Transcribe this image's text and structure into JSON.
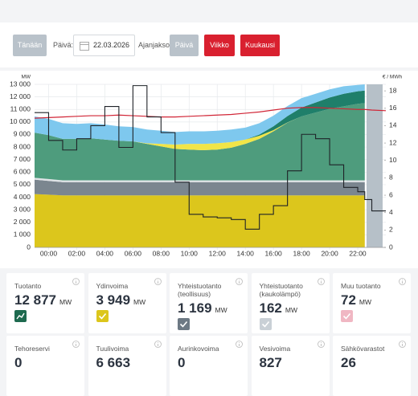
{
  "controls": {
    "today": "Tänään",
    "day_label": "Päivä:",
    "date": "22.03.2026",
    "period_label": "Ajanjakso:",
    "periods": [
      "Päivä",
      "Viikko",
      "Kuukausi"
    ]
  },
  "chart_data": {
    "type": "area",
    "y_label": "MW",
    "y2_label": "€ / MWh",
    "x": [
      -1,
      0,
      1,
      2,
      3,
      4,
      5,
      6,
      7,
      8,
      9,
      10,
      11,
      12,
      13,
      14,
      15,
      16,
      17,
      18,
      19,
      20,
      21,
      22,
      22.5,
      23,
      24
    ],
    "xlim": [
      -1,
      24
    ],
    "xticks": [
      {
        "value": 0,
        "label": "00:00"
      },
      {
        "value": 2,
        "label": "02:00"
      },
      {
        "value": 4,
        "label": "04:00"
      },
      {
        "value": 6,
        "label": "06:00"
      },
      {
        "value": 8,
        "label": "08:00"
      },
      {
        "value": 10,
        "label": "10:00"
      },
      {
        "value": 12,
        "label": "12:00"
      },
      {
        "value": 14,
        "label": "14:00"
      },
      {
        "value": 16,
        "label": "16:00"
      },
      {
        "value": 18,
        "label": "18:00"
      },
      {
        "value": 20,
        "label": "20:00"
      },
      {
        "value": 22,
        "label": "22:00"
      }
    ],
    "ylim": [
      0,
      13000
    ],
    "yticks": [
      0,
      {
        "value": 1000,
        "label": "1 000"
      },
      {
        "value": 2000,
        "label": "2 000"
      },
      {
        "value": 3000,
        "label": "3 000"
      },
      {
        "value": 4000,
        "label": "4 000"
      },
      {
        "value": 5000,
        "label": "5 000"
      },
      {
        "value": 6000,
        "label": "6 000"
      },
      {
        "value": 7000,
        "label": "7 000"
      },
      {
        "value": 8000,
        "label": "8 000"
      },
      {
        "value": 9000,
        "label": "9 000"
      },
      {
        "value": 10000,
        "label": "10 000"
      },
      {
        "value": 11000,
        "label": "11 000"
      },
      {
        "value": 12000,
        "label": "12 000"
      },
      {
        "value": 13000,
        "label": "13 000"
      }
    ],
    "y2lim": [
      0,
      18.75
    ],
    "y2ticks": [
      0,
      2,
      4,
      6,
      8,
      10,
      12,
      14,
      16,
      18
    ],
    "grid": true,
    "series": [
      {
        "kind": "stack",
        "color": "#dcc61c",
        "values": [
          4250,
          4200,
          4150,
          4150,
          4150,
          4150,
          4150,
          4150,
          4150,
          4150,
          4150,
          4150,
          4150,
          4150,
          4150,
          4150,
          4150,
          4150,
          4150,
          4150,
          4150,
          4150,
          4150,
          4150,
          4150,
          null,
          null
        ]
      },
      {
        "kind": "stack",
        "color": "#7b868f",
        "values": [
          1150,
          1100,
          1050,
          1050,
          1050,
          1050,
          1050,
          1050,
          1050,
          1050,
          1050,
          1050,
          1050,
          1050,
          1050,
          1050,
          1050,
          1050,
          1050,
          1050,
          1050,
          1050,
          1050,
          1050,
          1050,
          null,
          null
        ]
      },
      {
        "kind": "stack",
        "color": "#dfe3e6",
        "values": [
          150,
          150,
          150,
          150,
          150,
          150,
          150,
          150,
          150,
          150,
          150,
          150,
          150,
          150,
          150,
          150,
          150,
          150,
          150,
          150,
          150,
          150,
          150,
          150,
          150,
          null,
          null
        ]
      },
      {
        "kind": "stack",
        "color": "#4e9c7d",
        "values": [
          3600,
          3500,
          3300,
          3300,
          3350,
          3250,
          3150,
          3100,
          2900,
          2700,
          2500,
          2450,
          2400,
          2450,
          2600,
          2900,
          3300,
          3900,
          4600,
          5100,
          5400,
          5700,
          5900,
          6100,
          6150,
          null,
          null
        ]
      },
      {
        "kind": "stack",
        "color": "#f1e548",
        "values": [
          0,
          0,
          0,
          0,
          0,
          0,
          0,
          0,
          50,
          200,
          350,
          450,
          500,
          500,
          450,
          350,
          250,
          100,
          20,
          0,
          0,
          0,
          0,
          0,
          0,
          null,
          null
        ]
      },
      {
        "kind": "stack",
        "color": "#1f7f6a",
        "values": [
          0,
          0,
          0,
          0,
          0,
          0,
          0,
          0,
          0,
          0,
          0,
          0,
          0,
          0,
          0,
          0,
          100,
          300,
          500,
          700,
          800,
          900,
          1000,
          1000,
          1000,
          null,
          null
        ]
      },
      {
        "kind": "stack",
        "color": "#7ec8ee",
        "values": [
          1300,
          1300,
          1250,
          1200,
          1200,
          1200,
          1150,
          1150,
          1100,
          1050,
          1000,
          1000,
          1000,
          1000,
          1000,
          950,
          900,
          850,
          800,
          750,
          700,
          650,
          600,
          500,
          500,
          null,
          null
        ]
      },
      {
        "kind": "line",
        "color": "#d12536",
        "values": [
          10300,
          10350,
          10400,
          10450,
          10500,
          10500,
          10550,
          10500,
          10450,
          10400,
          10400,
          10450,
          10500,
          10550,
          10600,
          10700,
          10800,
          10950,
          11100,
          11150,
          11150,
          11100,
          11050,
          11000,
          11000,
          10950,
          10900
        ]
      },
      {
        "kind": "step",
        "axis": "y2",
        "color": "#1f2328",
        "values": [
          15.5,
          12.3,
          11.2,
          12.5,
          14.0,
          16.2,
          11.5,
          18.6,
          15.0,
          13.2,
          7.5,
          3.8,
          3.5,
          3.4,
          3.2,
          2.1,
          3.8,
          4.8,
          8.8,
          13.0,
          12.5,
          9.5,
          6.9,
          6.4,
          5.5,
          4.2,
          4.2
        ]
      }
    ]
  },
  "cards": [
    {
      "label": "Tuotanto",
      "value": "12 877",
      "unit": "MW"
    },
    {
      "label": "Ydinvoima",
      "value": "3 949",
      "unit": "MW"
    },
    {
      "label": "Yhteistuotanto (teollisuus)",
      "value": "1 169",
      "unit": "MW"
    },
    {
      "label": "Yhteistuotanto (kaukolämpö)",
      "value": "162",
      "unit": "MW"
    },
    {
      "label": "Muu tuotanto",
      "value": "72",
      "unit": "MW"
    },
    {
      "label": "Tehoreservi",
      "value": "0"
    },
    {
      "label": "Tuulivoima",
      "value": "6 663"
    },
    {
      "label": "Aurinkovoima",
      "value": "0"
    },
    {
      "label": "Vesivoima",
      "value": "827"
    },
    {
      "label": "Sähkövarastot",
      "value": "26"
    }
  ]
}
